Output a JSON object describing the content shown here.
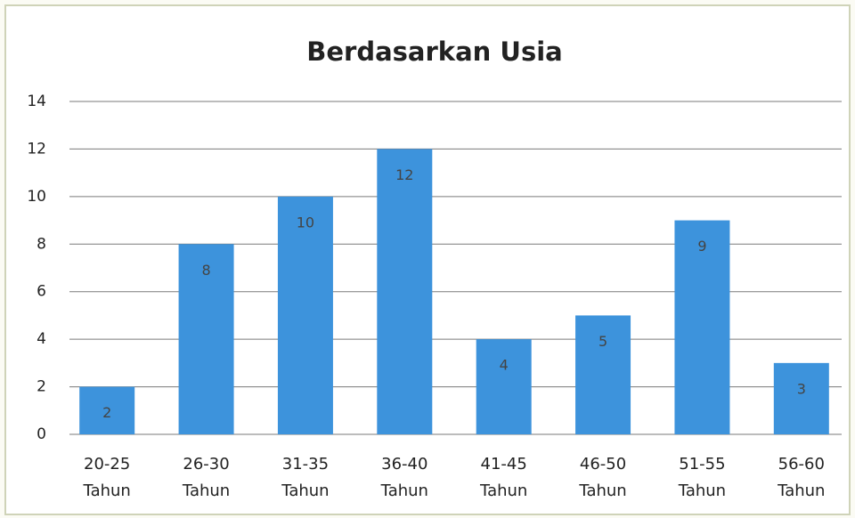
{
  "chart_data": {
    "type": "bar",
    "title": "Berdasarkan Usia",
    "categories": [
      "20-25 Tahun",
      "26-30 Tahun",
      "31-35 Tahun",
      "36-40 Tahun",
      "41-45 Tahun",
      "46-50 Tahun",
      "51-55 Tahun",
      "56-60 Tahun"
    ],
    "values": [
      2,
      8,
      10,
      12,
      4,
      5,
      9,
      3
    ],
    "color": "#3d93dc",
    "ylim": [
      0,
      14
    ],
    "yticks": [
      0,
      2,
      4,
      6,
      8,
      10,
      12,
      14
    ],
    "grid": true
  }
}
